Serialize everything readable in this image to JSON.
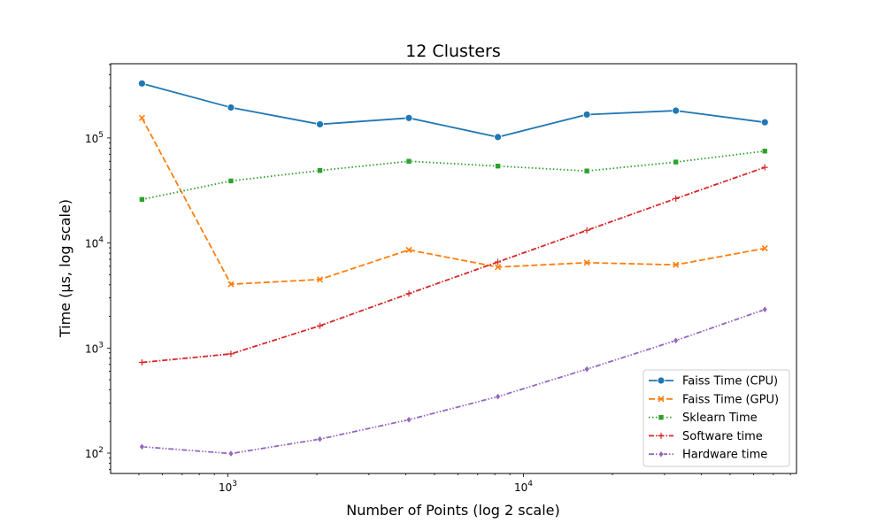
{
  "chart_data": {
    "type": "line",
    "title": "12 Clusters",
    "xlabel": "Number of Points (log 2 scale)",
    "ylabel": "Time (µs, log scale)",
    "x_scale": "log",
    "y_scale": "log",
    "x_tick_labels": [
      {
        "value": 1000,
        "base": "10",
        "exp": "3"
      },
      {
        "value": 10000,
        "base": "10",
        "exp": "4"
      }
    ],
    "y_tick_labels": [
      {
        "value": 100,
        "base": "10",
        "exp": "2"
      },
      {
        "value": 1000,
        "base": "10",
        "exp": "3"
      },
      {
        "value": 10000,
        "base": "10",
        "exp": "4"
      },
      {
        "value": 100000,
        "base": "10",
        "exp": "5"
      }
    ],
    "grid": false,
    "legend_position": "lower-right",
    "x": [
      512,
      1024,
      2048,
      4096,
      8192,
      16384,
      32768,
      65536
    ],
    "series": [
      {
        "name": "Faiss Time (CPU)",
        "color": "#1f77b4",
        "marker": "circle",
        "dash": "solid",
        "values": [
          330000,
          195000,
          135000,
          155000,
          102000,
          167000,
          182000,
          141000
        ]
      },
      {
        "name": "Faiss Time (GPU)",
        "color": "#ff7f0e",
        "marker": "x",
        "dash": "dashed",
        "values": [
          155000,
          4050,
          4500,
          8600,
          5900,
          6500,
          6200,
          8900
        ]
      },
      {
        "name": "Sklearn Time",
        "color": "#2ca02c",
        "marker": "square",
        "dash": "dotted",
        "values": [
          26000,
          39000,
          49000,
          60000,
          54000,
          48500,
          59000,
          75000
        ]
      },
      {
        "name": "Software time",
        "color": "#d62728",
        "marker": "plus",
        "dash": "dashdot",
        "values": [
          730,
          880,
          1630,
          3300,
          6600,
          13200,
          26500,
          52500
        ]
      },
      {
        "name": "Hardware time",
        "color": "#9467bd",
        "marker": "diamond",
        "dash": "dashdotdot",
        "values": [
          115,
          99,
          136,
          208,
          345,
          630,
          1180,
          2330
        ]
      }
    ]
  }
}
